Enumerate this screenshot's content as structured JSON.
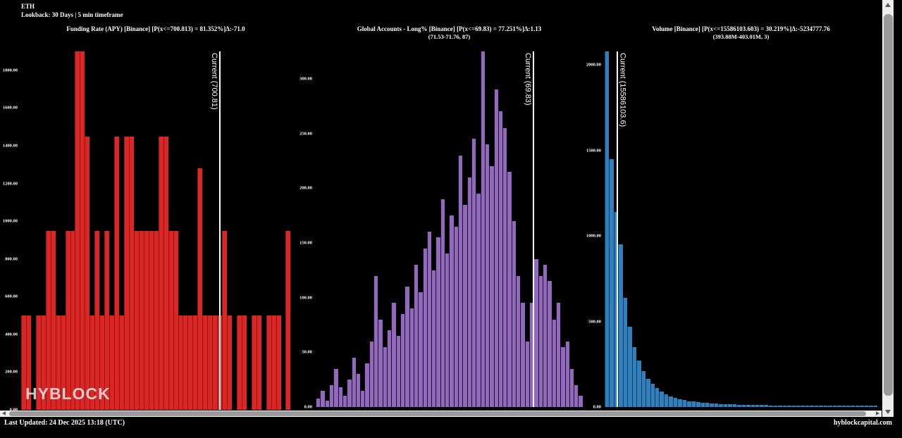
{
  "page": {
    "symbol": "ETH",
    "lookback": "Lookback: 30 Days | 5 min timeframe",
    "watermark": "HYBLOCK",
    "footer_left": "Last Updated: 24 Dec 2025 13:18 (UTC)",
    "footer_right": "hyblockcapital.com"
  },
  "colors": {
    "background": "#000000",
    "funding_rate_bar": "#da2726",
    "long_pct_bar": "#9269be",
    "volume_bar": "#2f80bd",
    "current_line": "#ffffff",
    "scrollbar_track": "#ededed",
    "scrollbar_thumb": "#9a9a9a"
  },
  "chart_data": [
    {
      "type": "bar",
      "title": "Funding Rate (APY) [Binance] [P(x<=700.813) = 81.352%]Δ:-71.0",
      "subtitle": "",
      "ylabel_ticks_note": "frequency histogram, no x tick labels",
      "ylim": [
        0,
        1900
      ],
      "yticks": [
        {
          "label": "1800.00",
          "value": 1800
        },
        {
          "label": "1600.00",
          "value": 1600
        },
        {
          "label": "1400.00",
          "value": 1400
        },
        {
          "label": "1200.00",
          "value": 1200
        },
        {
          "label": "1000.00",
          "value": 1000
        },
        {
          "label": "800.00",
          "value": 800
        },
        {
          "label": "600.00",
          "value": 600
        },
        {
          "label": "400.00",
          "value": 400
        },
        {
          "label": "200.00",
          "value": 200
        },
        {
          "label": "0.00",
          "value": 0
        }
      ],
      "current": {
        "label": "Current (700.81)",
        "position_pct": 73.6,
        "label_side": "left"
      },
      "values": [
        500,
        500,
        0,
        500,
        500,
        950,
        950,
        500,
        500,
        950,
        950,
        1900,
        1900,
        1450,
        500,
        950,
        500,
        950,
        500,
        1450,
        500,
        1450,
        1450,
        950,
        950,
        950,
        950,
        950,
        1450,
        1450,
        950,
        950,
        500,
        500,
        500,
        500,
        1280,
        500,
        500,
        500,
        500,
        950,
        500,
        0,
        500,
        500,
        0,
        500,
        500,
        0,
        500,
        500,
        500,
        0,
        950
      ]
    },
    {
      "type": "bar",
      "title": "Global Accounts - Long% [Binance] [P(x<=69.83) = 77.251%]Δ:1.13",
      "subtitle": "(71.53-71.76, 87)",
      "ylim": [
        0,
        325
      ],
      "yticks": [
        {
          "label": "300.00",
          "value": 300
        },
        {
          "label": "250.00",
          "value": 250
        },
        {
          "label": "200.00",
          "value": 200
        },
        {
          "label": "150.00",
          "value": 150
        },
        {
          "label": "100.00",
          "value": 100
        },
        {
          "label": "50.00",
          "value": 50
        },
        {
          "label": "0.00",
          "value": 0
        }
      ],
      "current": {
        "label": "Current (69.83)",
        "position_pct": 81.3,
        "label_side": "left"
      },
      "values": [
        8,
        15,
        6,
        20,
        35,
        18,
        10,
        25,
        45,
        30,
        15,
        40,
        60,
        120,
        80,
        55,
        70,
        95,
        65,
        85,
        110,
        90,
        130,
        105,
        145,
        160,
        125,
        155,
        190,
        140,
        175,
        165,
        230,
        185,
        210,
        245,
        195,
        325,
        240,
        220,
        290,
        270,
        255,
        215,
        170,
        120,
        95,
        60,
        95,
        135,
        120,
        130,
        115,
        80,
        95,
        55,
        60,
        35,
        20,
        10
      ]
    },
    {
      "type": "bar",
      "title": "Volume [Binance] [P(x<=15586103.603) = 30.219%]Δ:-5234777.76",
      "subtitle": "(393.88M-403.01M, 3)",
      "ylim": [
        0,
        2080
      ],
      "yticks": [
        {
          "label": "2000.00",
          "value": 2000
        },
        {
          "label": "1500.00",
          "value": 1500
        },
        {
          "label": "1000.00",
          "value": 1000
        },
        {
          "label": "500.00",
          "value": 500
        },
        {
          "label": "0.00",
          "value": 0
        }
      ],
      "current": {
        "label": "Current (15586103.6)",
        "position_pct": 4.3,
        "label_side": "right"
      },
      "values": [
        2080,
        1450,
        1140,
        950,
        640,
        470,
        350,
        270,
        210,
        165,
        135,
        110,
        90,
        75,
        62,
        52,
        45,
        40,
        35,
        31,
        28,
        25,
        23,
        21,
        19,
        18,
        17,
        16,
        15,
        14,
        13,
        13,
        12,
        12,
        11,
        11,
        10,
        10,
        10,
        9,
        9,
        9,
        9,
        8,
        8,
        8,
        8,
        8,
        8,
        8,
        8,
        8,
        8,
        8,
        8,
        8,
        8,
        8,
        8,
        8
      ]
    }
  ]
}
